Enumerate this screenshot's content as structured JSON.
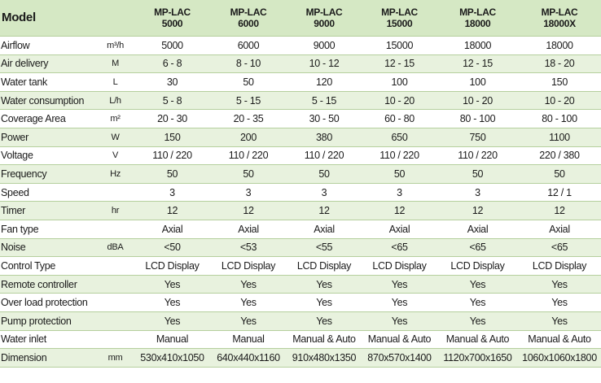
{
  "table": {
    "header": {
      "label": "Model",
      "models": [
        {
          "series": "MP-LAC",
          "number": "5000"
        },
        {
          "series": "MP-LAC",
          "number": "6000"
        },
        {
          "series": "MP-LAC",
          "number": "9000"
        },
        {
          "series": "MP-LAC",
          "number": "15000"
        },
        {
          "series": "MP-LAC",
          "number": "18000"
        },
        {
          "series": "MP-LAC",
          "number": "18000X"
        }
      ]
    },
    "rows": [
      {
        "label": "Airflow",
        "unit": "m³/h",
        "values": [
          "5000",
          "6000",
          "9000",
          "15000",
          "18000",
          "18000"
        ]
      },
      {
        "label": "Air delivery",
        "unit": "M",
        "values": [
          "6 - 8",
          "8 - 10",
          "10 - 12",
          "12 - 15",
          "12 - 15",
          "18 - 20"
        ]
      },
      {
        "label": "Water tank",
        "unit": "L",
        "values": [
          "30",
          "50",
          "120",
          "100",
          "100",
          "150"
        ]
      },
      {
        "label": "Water consumption",
        "unit": "L/h",
        "values": [
          "5 - 8",
          "5 - 15",
          "5 - 15",
          "10 - 20",
          "10 - 20",
          "10 - 20"
        ]
      },
      {
        "label": "Coverage Area",
        "unit": "m²",
        "values": [
          "20 - 30",
          "20 - 35",
          "30 - 50",
          "60 - 80",
          "80 - 100",
          "80 - 100"
        ]
      },
      {
        "label": "Power",
        "unit": "W",
        "values": [
          "150",
          "200",
          "380",
          "650",
          "750",
          "1100"
        ]
      },
      {
        "label": "Voltage",
        "unit": "V",
        "values": [
          "110 / 220",
          "110 / 220",
          "110 / 220",
          "110 / 220",
          "110 / 220",
          "220 / 380"
        ]
      },
      {
        "label": "Frequency",
        "unit": "Hz",
        "values": [
          "50",
          "50",
          "50",
          "50",
          "50",
          "50"
        ]
      },
      {
        "label": "Speed",
        "values": [
          "3",
          "3",
          "3",
          "3",
          "3",
          "12 / 1"
        ]
      },
      {
        "label": "Timer",
        "unit": "hr",
        "values": [
          "12",
          "12",
          "12",
          "12",
          "12",
          "12"
        ]
      },
      {
        "label": "Fan type",
        "values": [
          "Axial",
          "Axial",
          "Axial",
          "Axial",
          "Axial",
          "Axial"
        ]
      },
      {
        "label": "Noise",
        "unit": "dBA",
        "values": [
          "<50",
          "<53",
          "<55",
          "<65",
          "<65",
          "<65"
        ]
      },
      {
        "label": "Control Type",
        "values": [
          "LCD Display",
          "LCD Display",
          "LCD Display",
          "LCD Display",
          "LCD Display",
          "LCD Display"
        ]
      },
      {
        "label": "Remote controller",
        "values": [
          "Yes",
          "Yes",
          "Yes",
          "Yes",
          "Yes",
          "Yes"
        ]
      },
      {
        "label": "Over load protection",
        "values": [
          "Yes",
          "Yes",
          "Yes",
          "Yes",
          "Yes",
          "Yes"
        ]
      },
      {
        "label": "Pump protection",
        "values": [
          "Yes",
          "Yes",
          "Yes",
          "Yes",
          "Yes",
          "Yes"
        ]
      },
      {
        "label": "Water inlet",
        "values": [
          "Manual",
          "Manual",
          "Manual & Auto",
          "Manual & Auto",
          "Manual & Auto",
          "Manual & Auto"
        ]
      },
      {
        "label": "Dimension",
        "unit": "mm",
        "values": [
          "530x410x1050",
          "640x440x1160",
          "910x480x1350",
          "870x570x1400",
          "1120x700x1650",
          "1060x1060x1800"
        ]
      }
    ]
  }
}
